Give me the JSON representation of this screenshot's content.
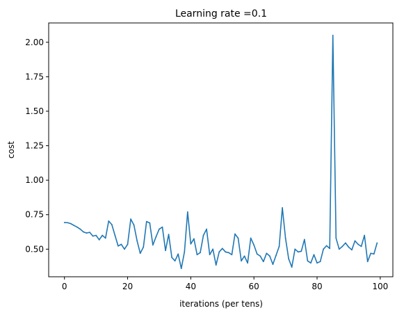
{
  "chart_data": {
    "type": "line",
    "title": "Learning rate =0.1",
    "xlabel": "iterations (per tens)",
    "ylabel": "cost",
    "xlim": [
      -5,
      104
    ],
    "ylim": [
      0.3,
      2.14
    ],
    "xticks": [
      0,
      20,
      40,
      60,
      80,
      100
    ],
    "yticks": [
      0.5,
      0.75,
      1.0,
      1.25,
      1.5,
      1.75,
      2.0
    ],
    "ytick_labels": [
      "0.50",
      "0.75",
      "1.00",
      "1.25",
      "1.50",
      "1.75",
      "2.00"
    ],
    "grid": false,
    "series": [
      {
        "color": "#1f77b4",
        "x": [
          0,
          1,
          2,
          3,
          4,
          5,
          6,
          7,
          8,
          9,
          10,
          11,
          12,
          13,
          14,
          15,
          16,
          17,
          18,
          19,
          20,
          21,
          22,
          23,
          24,
          25,
          26,
          27,
          28,
          29,
          30,
          31,
          32,
          33,
          34,
          35,
          36,
          37,
          38,
          39,
          40,
          41,
          42,
          43,
          44,
          45,
          46,
          47,
          48,
          49,
          50,
          51,
          52,
          53,
          54,
          55,
          56,
          57,
          58,
          59,
          60,
          61,
          62,
          63,
          64,
          65,
          66,
          67,
          68,
          69,
          70,
          71,
          72,
          73,
          74,
          75,
          76,
          77,
          78,
          79,
          80,
          81,
          82,
          83,
          84,
          85,
          86,
          87,
          88,
          89,
          90,
          91,
          92,
          93,
          94,
          95,
          96,
          97,
          98,
          99
        ],
        "y": [
          0.693,
          0.692,
          0.685,
          0.672,
          0.66,
          0.645,
          0.625,
          0.617,
          0.622,
          0.595,
          0.6,
          0.568,
          0.6,
          0.58,
          0.704,
          0.678,
          0.6,
          0.523,
          0.535,
          0.5,
          0.535,
          0.718,
          0.675,
          0.56,
          0.47,
          0.515,
          0.7,
          0.69,
          0.53,
          0.59,
          0.645,
          0.66,
          0.49,
          0.607,
          0.44,
          0.415,
          0.465,
          0.36,
          0.48,
          0.77,
          0.538,
          0.575,
          0.46,
          0.475,
          0.6,
          0.645,
          0.46,
          0.5,
          0.385,
          0.48,
          0.505,
          0.48,
          0.475,
          0.46,
          0.61,
          0.58,
          0.415,
          0.45,
          0.4,
          0.58,
          0.53,
          0.465,
          0.45,
          0.41,
          0.47,
          0.45,
          0.39,
          0.455,
          0.52,
          0.8,
          0.58,
          0.43,
          0.37,
          0.5,
          0.48,
          0.485,
          0.57,
          0.415,
          0.4,
          0.46,
          0.4,
          0.41,
          0.5,
          0.525,
          0.505,
          2.05,
          0.58,
          0.5,
          0.52,
          0.545,
          0.515,
          0.495,
          0.56,
          0.535,
          0.52,
          0.6,
          0.41,
          0.47,
          0.465,
          0.545
        ]
      }
    ]
  }
}
